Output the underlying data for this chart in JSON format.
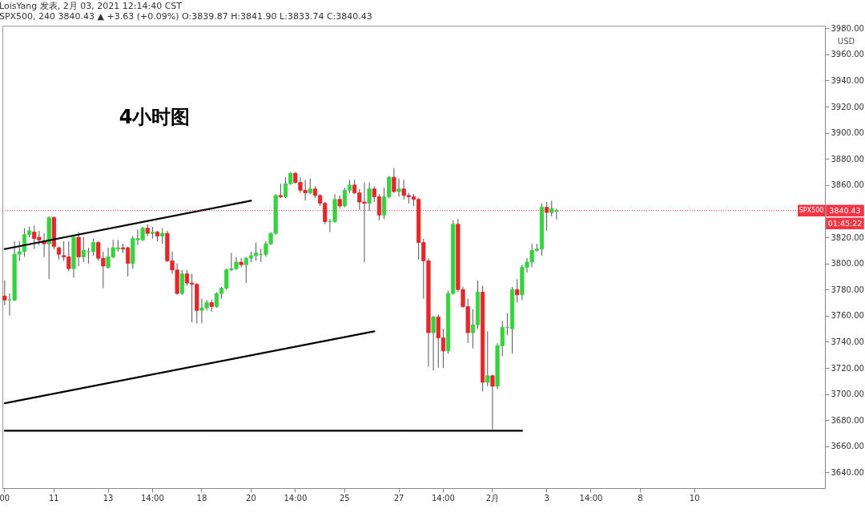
{
  "chart_data": {
    "type": "candlestick",
    "title": "LoisYang 发表, 2月 03, 2021 12:14:40 CST",
    "subtitle": "SPX500, 240 3840.43 ▲ +3.63 (+0.09%) O:3839.87 H:3841.90 L:3833.74 C:3840.43",
    "ylabel": "USD",
    "annotations": [
      "4小时图",
      "3840.43",
      "01:45:22"
    ],
    "categories": [
      "00",
      null,
      null,
      null,
      null,
      null,
      null,
      null,
      null,
      null,
      "11",
      null,
      null,
      null,
      null,
      null,
      null,
      null,
      null,
      null,
      null,
      "13",
      null,
      null,
      null,
      null,
      null,
      null,
      null,
      null,
      "14:00",
      null,
      null,
      null,
      null,
      null,
      null,
      null,
      null,
      null,
      "18",
      null,
      null,
      null,
      null,
      null,
      null,
      null,
      null,
      null,
      "20",
      null,
      null,
      null,
      null,
      null,
      null,
      null,
      null,
      "14:00",
      null,
      null,
      null,
      null,
      null,
      null,
      null,
      null,
      null,
      "25",
      null,
      null,
      null,
      null,
      null,
      null,
      null,
      null,
      null,
      null,
      "27",
      null,
      null,
      null,
      null,
      null,
      null,
      null,
      null,
      "14:00",
      null,
      null,
      null,
      null,
      null,
      null,
      null,
      null,
      null,
      "2月",
      null,
      null,
      null,
      null,
      null,
      null,
      null,
      null,
      null,
      null,
      "3",
      null,
      null,
      null,
      null,
      null,
      null,
      null,
      null,
      "14:00",
      null,
      null,
      null,
      null,
      null,
      null,
      null,
      null,
      null,
      "8",
      null,
      null,
      null,
      null,
      null,
      null,
      null,
      null,
      null,
      null,
      "10",
      null,
      null,
      null,
      null,
      null,
      null,
      null,
      null,
      null,
      null,
      null,
      null,
      null,
      null,
      null,
      null,
      null,
      null,
      null,
      null,
      null,
      null,
      null,
      null,
      null,
      null
    ],
    "ohlc": [
      [
        3775,
        3787,
        3768,
        3772
      ],
      [
        3772,
        3777,
        3760,
        3772
      ],
      [
        3772,
        3817,
        3771,
        3807
      ],
      [
        3807,
        3817,
        3802,
        3809
      ],
      [
        3809,
        3827,
        3805,
        3822
      ],
      [
        3822,
        3828,
        3820,
        3825
      ],
      [
        3824,
        3829,
        3811,
        3819
      ],
      [
        3820,
        3825,
        3814,
        3818
      ],
      [
        3817,
        3823,
        3805,
        3815
      ],
      [
        3815,
        3836,
        3788,
        3835
      ],
      [
        3835,
        3836,
        3811,
        3813
      ],
      [
        3812,
        3813,
        3803,
        3807
      ],
      [
        3806,
        3817,
        3802,
        3805
      ],
      [
        3805,
        3817,
        3794,
        3796
      ],
      [
        3796,
        3822,
        3789,
        3820
      ],
      [
        3820,
        3824,
        3798,
        3805
      ],
      [
        3805,
        3820,
        3801,
        3810
      ],
      [
        3809,
        3812,
        3800,
        3809
      ],
      [
        3809,
        3819,
        3806,
        3816
      ],
      [
        3816,
        3817,
        3802,
        3804
      ],
      [
        3804,
        3809,
        3781,
        3798
      ],
      [
        3797,
        3812,
        3796,
        3805
      ],
      [
        3805,
        3818,
        3804,
        3812
      ],
      [
        3811,
        3818,
        3809,
        3812
      ],
      [
        3812,
        3815,
        3808,
        3811
      ],
      [
        3812,
        3813,
        3790,
        3800
      ],
      [
        3800,
        3821,
        3796,
        3819
      ],
      [
        3818,
        3826,
        3814,
        3819
      ],
      [
        3818,
        3828,
        3817,
        3827
      ],
      [
        3827,
        3830,
        3821,
        3823
      ],
      [
        3823,
        3828,
        3819,
        3824
      ],
      [
        3824,
        3825,
        3817,
        3821
      ],
      [
        3821,
        3827,
        3815,
        3823
      ],
      [
        3823,
        3825,
        3801,
        3802
      ],
      [
        3802,
        3809,
        3792,
        3795
      ],
      [
        3795,
        3800,
        3776,
        3777
      ],
      [
        3777,
        3795,
        3776,
        3792
      ],
      [
        3792,
        3795,
        3783,
        3785
      ],
      [
        3785,
        3792,
        3755,
        3784
      ],
      [
        3784,
        3785,
        3754,
        3764
      ],
      [
        3764,
        3773,
        3754,
        3766
      ],
      [
        3766,
        3772,
        3764,
        3770
      ],
      [
        3770,
        3772,
        3763,
        3767
      ],
      [
        3767,
        3778,
        3766,
        3777
      ],
      [
        3777,
        3782,
        3773,
        3781
      ],
      [
        3781,
        3796,
        3780,
        3795
      ],
      [
        3795,
        3808,
        3794,
        3796
      ],
      [
        3796,
        3805,
        3795,
        3801
      ],
      [
        3801,
        3804,
        3797,
        3799
      ],
      [
        3799,
        3805,
        3785,
        3804
      ],
      [
        3804,
        3809,
        3801,
        3806
      ],
      [
        3806,
        3816,
        3802,
        3808
      ],
      [
        3807,
        3811,
        3801,
        3807
      ],
      [
        3807,
        3817,
        3805,
        3815
      ],
      [
        3815,
        3824,
        3814,
        3823
      ],
      [
        3823,
        3853,
        3822,
        3852
      ],
      [
        3852,
        3861,
        3850,
        3851
      ],
      [
        3851,
        3866,
        3850,
        3861
      ],
      [
        3861,
        3870,
        3860,
        3869
      ],
      [
        3869,
        3870,
        3861,
        3862
      ],
      [
        3862,
        3866,
        3854,
        3856
      ],
      [
        3856,
        3864,
        3848,
        3854
      ],
      [
        3854,
        3865,
        3853,
        3857
      ],
      [
        3857,
        3859,
        3850,
        3852
      ],
      [
        3852,
        3853,
        3844,
        3846
      ],
      [
        3846,
        3847,
        3830,
        3832
      ],
      [
        3832,
        3834,
        3824,
        3832
      ],
      [
        3832,
        3853,
        3831,
        3849
      ],
      [
        3849,
        3852,
        3842,
        3844
      ],
      [
        3844,
        3858,
        3843,
        3856
      ],
      [
        3856,
        3864,
        3854,
        3860
      ],
      [
        3860,
        3864,
        3853,
        3854
      ],
      [
        3854,
        3857,
        3841,
        3847
      ],
      [
        3847,
        3862,
        3801,
        3846
      ],
      [
        3846,
        3862,
        3840,
        3857
      ],
      [
        3857,
        3859,
        3847,
        3851
      ],
      [
        3851,
        3853,
        3833,
        3837
      ],
      [
        3837,
        3858,
        3834,
        3851
      ],
      [
        3851,
        3867,
        3850,
        3866
      ],
      [
        3866,
        3873,
        3854,
        3855
      ],
      [
        3855,
        3865,
        3851,
        3857
      ],
      [
        3857,
        3864,
        3849,
        3852
      ],
      [
        3852,
        3854,
        3846,
        3851
      ],
      [
        3851,
        3853,
        3844,
        3849
      ],
      [
        3849,
        3850,
        3803,
        3816
      ],
      [
        3816,
        3819,
        3773,
        3802
      ],
      [
        3802,
        3804,
        3721,
        3747
      ],
      [
        3747,
        3760,
        3718,
        3759
      ],
      [
        3759,
        3761,
        3720,
        3743
      ],
      [
        3743,
        3750,
        3720,
        3733
      ],
      [
        3733,
        3779,
        3731,
        3777
      ],
      [
        3777,
        3833,
        3776,
        3830
      ],
      [
        3830,
        3834,
        3778,
        3780
      ],
      [
        3780,
        3782,
        3766,
        3767
      ],
      [
        3767,
        3773,
        3739,
        3747
      ],
      [
        3747,
        3765,
        3735,
        3753
      ],
      [
        3753,
        3787,
        3750,
        3778
      ],
      [
        3778,
        3783,
        3702,
        3709
      ],
      [
        3709,
        3748,
        3706,
        3714
      ],
      [
        3714,
        3715,
        3673,
        3706
      ],
      [
        3706,
        3739,
        3704,
        3737
      ],
      [
        3737,
        3756,
        3729,
        3751
      ],
      [
        3751,
        3762,
        3745,
        3751
      ],
      [
        3750,
        3782,
        3731,
        3780
      ],
      [
        3780,
        3788,
        3770,
        3776
      ],
      [
        3776,
        3799,
        3772,
        3797
      ],
      [
        3797,
        3804,
        3793,
        3801
      ],
      [
        3801,
        3815,
        3797,
        3810
      ],
      [
        3810,
        3815,
        3809,
        3811
      ],
      [
        3811,
        3846,
        3806,
        3843
      ],
      [
        3843,
        3847,
        3825,
        3839
      ],
      [
        3839,
        3848,
        3836,
        3842
      ],
      [
        3839.87,
        3841.9,
        3833.74,
        3840.43
      ],
      null,
      null,
      null,
      null,
      null,
      null,
      null,
      null,
      null,
      null,
      null,
      null,
      null,
      null,
      null,
      null,
      null,
      null,
      null,
      null,
      null,
      null,
      null,
      null,
      null,
      null,
      null,
      null,
      null,
      null,
      null,
      null,
      null,
      null,
      null,
      null,
      null,
      null,
      null,
      null,
      null,
      null,
      null,
      null,
      null,
      null,
      null,
      null,
      null,
      null,
      null,
      null,
      null,
      null
    ],
    "colors": [
      "#e3272b",
      "#36d33f",
      "#36d33f",
      "#36d33f",
      "#36d33f",
      "#36d33f",
      "#e3272b",
      "#e3272b",
      "#e3272b",
      "#36d33f",
      "#e3272b",
      "#e3272b",
      "#e3272b",
      "#e3272b",
      "#36d33f",
      "#e3272b",
      "#36d33f",
      "#36d33f",
      "#36d33f",
      "#e3272b",
      "#e3272b",
      "#36d33f",
      "#36d33f",
      "#36d33f",
      "#e3272b",
      "#e3272b",
      "#36d33f",
      "#36d33f",
      "#36d33f",
      "#e3272b",
      "#36d33f",
      "#e3272b",
      "#36d33f",
      "#e3272b",
      "#e3272b",
      "#e3272b",
      "#36d33f",
      "#e3272b",
      "#e3272b",
      "#e3272b",
      "#36d33f",
      "#36d33f",
      "#e3272b",
      "#36d33f",
      "#36d33f",
      "#36d33f",
      "#36d33f",
      "#36d33f",
      "#e3272b",
      "#36d33f",
      "#36d33f",
      "#36d33f",
      "#36d33f",
      "#36d33f",
      "#36d33f",
      "#36d33f",
      "#e3272b",
      "#36d33f",
      "#36d33f",
      "#e3272b",
      "#e3272b",
      "#e3272b",
      "#36d33f",
      "#e3272b",
      "#e3272b",
      "#e3272b",
      "#36d33f",
      "#36d33f",
      "#e3272b",
      "#36d33f",
      "#36d33f",
      "#e3272b",
      "#e3272b",
      "#e3272b",
      "#36d33f",
      "#e3272b",
      "#e3272b",
      "#36d33f",
      "#36d33f",
      "#e3272b",
      "#36d33f",
      "#e3272b",
      "#e3272b",
      "#e3272b",
      "#e3272b",
      "#e3272b",
      "#e3272b",
      "#36d33f",
      "#e3272b",
      "#e3272b",
      "#36d33f",
      "#36d33f",
      "#e3272b",
      "#e3272b",
      "#e3272b",
      "#36d33f",
      "#36d33f",
      "#e3272b",
      "#36d33f",
      "#e3272b",
      "#36d33f",
      "#36d33f",
      "#36d33f",
      "#36d33f",
      "#e3272b",
      "#36d33f",
      "#36d33f",
      "#36d33f",
      "#36d33f",
      "#36d33f",
      "#e3272b",
      "#36d33f",
      "#36d33f",
      null,
      null,
      null,
      null,
      null,
      null,
      null,
      null,
      null,
      null,
      null,
      null,
      null,
      null,
      null,
      null,
      null,
      null,
      null,
      null,
      null,
      null,
      null,
      null,
      null,
      null,
      null,
      null,
      null,
      null,
      null,
      null,
      null,
      null,
      null,
      null,
      null,
      null,
      null,
      null,
      null,
      null,
      null,
      null,
      null,
      null,
      null,
      null,
      null,
      null,
      null,
      null,
      null,
      null
    ],
    "series": [
      {
        "type": "line",
        "color": "#000000",
        "values": [
          3811,
          null,
          null,
          null,
          null,
          null,
          null,
          null,
          null,
          null,
          null,
          null,
          null,
          null,
          null,
          null,
          null,
          null,
          null,
          null,
          null,
          null,
          null,
          null,
          null,
          null,
          null,
          null,
          null,
          null,
          null,
          null,
          null,
          null,
          null,
          null,
          null,
          null,
          null,
          null,
          null,
          null,
          null,
          null,
          null,
          null,
          null,
          null,
          null,
          null,
          3848,
          null,
          null,
          null,
          null,
          null,
          null,
          null,
          null,
          null,
          null,
          null,
          null,
          null,
          null,
          null,
          null,
          null,
          null,
          null,
          null,
          null,
          null,
          null,
          null,
          null,
          null,
          null,
          null,
          null,
          null,
          null,
          null,
          null,
          null,
          null,
          null,
          null,
          null,
          null,
          null,
          null,
          null,
          null,
          null,
          null,
          null,
          null,
          null,
          null,
          null,
          null,
          null,
          null,
          null,
          null,
          null,
          null,
          null,
          null,
          null,
          null,
          null,
          null,
          null,
          null,
          null,
          null,
          null,
          null,
          null,
          null,
          null,
          null,
          null,
          null,
          null,
          null,
          null,
          null,
          null,
          null,
          null,
          null,
          null,
          null,
          null,
          null,
          null,
          null,
          null,
          null,
          null,
          null,
          null,
          null,
          null,
          null,
          null,
          null,
          null,
          null,
          null,
          null,
          null,
          null,
          null,
          null,
          null,
          null,
          null,
          null,
          null,
          null,
          null,
          null,
          null
        ]
      },
      {
        "type": "line",
        "color": "#000000",
        "values": [
          3693,
          null,
          null,
          null,
          null,
          null,
          null,
          null,
          null,
          null,
          null,
          null,
          null,
          null,
          null,
          null,
          null,
          null,
          null,
          null,
          null,
          null,
          null,
          null,
          null,
          null,
          null,
          null,
          null,
          null,
          null,
          null,
          null,
          null,
          null,
          null,
          null,
          null,
          null,
          null,
          null,
          null,
          null,
          null,
          null,
          null,
          null,
          null,
          null,
          null,
          null,
          null,
          null,
          null,
          null,
          null,
          null,
          null,
          null,
          null,
          null,
          null,
          null,
          null,
          null,
          null,
          null,
          null,
          null,
          null,
          null,
          null,
          null,
          null,
          null,
          3748,
          null,
          null,
          null,
          null,
          null,
          null,
          null,
          null,
          null,
          null,
          null,
          null,
          null,
          null,
          null,
          null,
          null,
          null,
          null,
          null,
          null,
          null,
          null,
          null,
          null,
          null,
          null,
          null,
          null,
          null,
          null,
          null,
          null,
          null,
          null,
          null,
          null,
          null,
          null,
          null,
          null,
          null,
          null,
          null,
          null,
          null,
          null,
          null,
          null,
          null,
          null,
          null,
          null,
          null,
          null,
          null,
          null,
          null,
          null,
          null,
          null,
          null,
          null,
          null,
          null,
          null,
          null,
          null,
          null,
          null,
          null,
          null,
          null,
          null,
          null,
          null,
          null,
          null,
          null,
          null,
          null,
          null,
          null,
          null,
          null,
          null,
          null,
          null,
          null,
          null,
          null
        ]
      },
      {
        "type": "line",
        "color": "#000000",
        "values": [
          3672,
          null,
          null,
          null,
          null,
          null,
          null,
          null,
          null,
          null,
          null,
          null,
          null,
          null,
          null,
          null,
          null,
          null,
          null,
          null,
          null,
          null,
          null,
          null,
          null,
          null,
          null,
          null,
          null,
          null,
          null,
          null,
          null,
          null,
          null,
          null,
          null,
          null,
          null,
          null,
          null,
          null,
          null,
          null,
          null,
          null,
          null,
          null,
          null,
          null,
          null,
          null,
          null,
          null,
          null,
          null,
          null,
          null,
          null,
          null,
          null,
          null,
          null,
          null,
          null,
          null,
          null,
          null,
          null,
          null,
          null,
          null,
          null,
          null,
          null,
          null,
          null,
          null,
          null,
          null,
          null,
          null,
          null,
          null,
          null,
          null,
          null,
          null,
          null,
          null,
          null,
          null,
          null,
          null,
          null,
          null,
          null,
          null,
          null,
          null,
          null,
          null,
          null,
          null,
          null,
          3672,
          null,
          null,
          null,
          null,
          null,
          null,
          null,
          null,
          null,
          null,
          null,
          null,
          null,
          null,
          null,
          null,
          null,
          null,
          null,
          null,
          null,
          null,
          null,
          null,
          null,
          null,
          null,
          null,
          null,
          null,
          null,
          null,
          null,
          null,
          null,
          null,
          null,
          null,
          null,
          null,
          null,
          null,
          null,
          null,
          null,
          null,
          null,
          null,
          null,
          null,
          null,
          null,
          null,
          null,
          null,
          null,
          null,
          null,
          null,
          null,
          null
        ]
      }
    ],
    "ref_lines": [
      {
        "axis": "y",
        "value": 3840.43,
        "label": "SPX500",
        "color": "#f23645",
        "line_style": "dotted"
      }
    ],
    "ylim": [
      3628,
      3982
    ],
    "yticks": [
      {
        "value": 3640,
        "label": "3640.00"
      },
      {
        "value": 3660,
        "label": "3660.00"
      },
      {
        "value": 3680,
        "label": "3680.00"
      },
      {
        "value": 3700,
        "label": "3700.00"
      },
      {
        "value": 3720,
        "label": "3720.00"
      },
      {
        "value": 3740,
        "label": "3740.00"
      },
      {
        "value": 3760,
        "label": "3760.00"
      },
      {
        "value": 3780,
        "label": "3780.00"
      },
      {
        "value": 3800,
        "label": "3800.00"
      },
      {
        "value": 3820,
        "label": "3820.00"
      },
      {
        "value": 3860,
        "label": "3860.00"
      },
      {
        "value": 3880,
        "label": "3880.00"
      },
      {
        "value": 3900,
        "label": "3900.00"
      },
      {
        "value": 3920,
        "label": "3920.00"
      },
      {
        "value": 3940,
        "label": "3940.00"
      },
      {
        "value": 3960,
        "label": "3960.00"
      },
      {
        "value": 3980,
        "label": "3980.00"
      }
    ]
  }
}
